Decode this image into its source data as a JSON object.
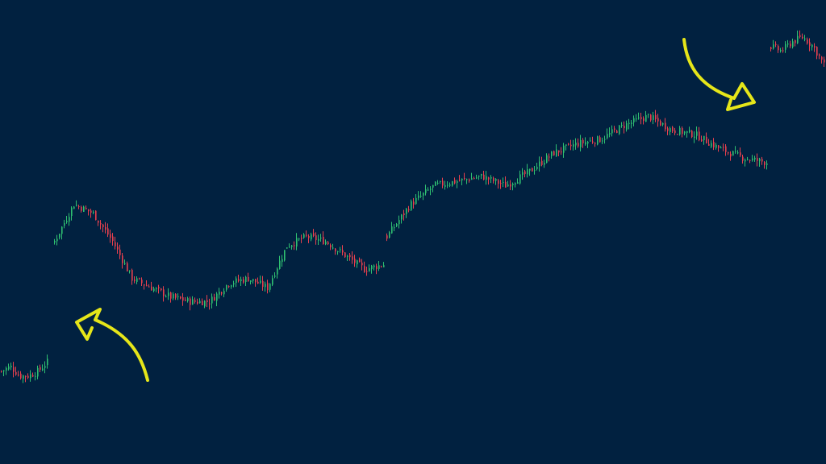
{
  "colors": {
    "background": "#012140",
    "up": "#2fbf71",
    "down": "#e8404e",
    "arrow": "#e6e619"
  },
  "annotations": [
    {
      "name": "gap-up-arrow-icon",
      "shape": "curved-arrow-up-left"
    },
    {
      "name": "gap-up-arrow-icon-2",
      "shape": "curved-arrow-down-right"
    }
  ],
  "chart_data": {
    "type": "candlestick",
    "title": "",
    "xlabel": "",
    "ylabel": "",
    "axes_visible": false,
    "grid": false,
    "ylim": [
      0,
      100
    ],
    "description_of_pattern": "",
    "segments": [
      {
        "x_start": 0,
        "x_end": 62,
        "close_path": [
          20,
          21,
          19,
          19,
          20,
          22
        ]
      },
      {
        "x_start": 66,
        "x_end": 478,
        "close_path": [
          48,
          56,
          54,
          48,
          40,
          38,
          36,
          35,
          35,
          39,
          40,
          38,
          47,
          49,
          48,
          45,
          42,
          43
        ]
      },
      {
        "x_start": 478,
        "x_end": 952,
        "close_path": [
          49,
          56,
          60,
          61,
          62,
          60,
          63,
          67,
          69,
          70,
          73,
          75,
          72,
          71,
          68,
          66,
          65
        ]
      },
      {
        "x_start": 954,
        "x_end": 1024,
        "close_path": [
          90,
          89,
          91,
          92,
          90,
          86
        ]
      }
    ]
  }
}
